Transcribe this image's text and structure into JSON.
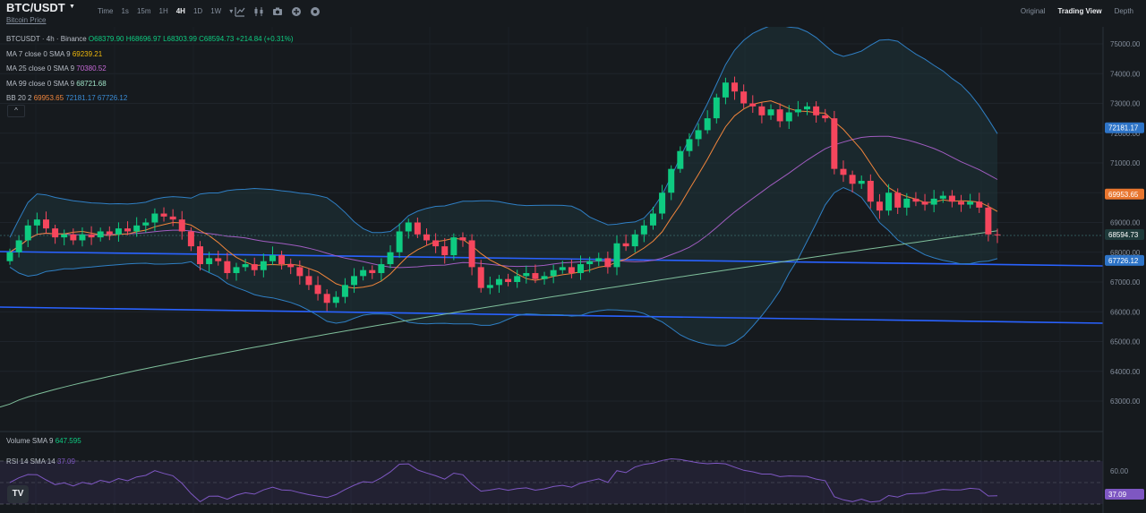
{
  "header": {
    "pair": "BTC/USDT",
    "subtitle": "Bitcoin Price",
    "intervals": [
      {
        "label": "Time",
        "active": false
      },
      {
        "label": "1s",
        "active": false
      },
      {
        "label": "15m",
        "active": false
      },
      {
        "label": "1H",
        "active": false
      },
      {
        "label": "4H",
        "active": true
      },
      {
        "label": "1D",
        "active": false
      },
      {
        "label": "1W",
        "active": false
      },
      {
        "label": "▾",
        "active": false
      }
    ],
    "tools": [
      "indicator-icon",
      "chart-type-icon",
      "camera-icon",
      "add-icon",
      "settings-icon"
    ],
    "views": [
      {
        "label": "Original",
        "active": false
      },
      {
        "label": "Trading View",
        "active": true
      },
      {
        "label": "Depth",
        "active": false
      }
    ]
  },
  "legend": {
    "symbol": "BTCUSDT · 4h · Binance",
    "ohlc": "O68379.90 H68696.97 L68303.99 C68594.73 +214.84 (+0.31%)",
    "ma7": {
      "label": "MA 7 close 0 SMA 9",
      "value": "69239.21",
      "color": "#f0b90b"
    },
    "ma25": {
      "label": "MA 25 close 0 SMA 9",
      "value": "70380.52",
      "color": "#c569d6"
    },
    "ma99": {
      "label": "MA 99 close 0 SMA 9",
      "value": "68721.68",
      "color": "#9fe3c7"
    },
    "bb": {
      "label": "BB 20 2",
      "v1": "69953.65",
      "v2": "72181.17",
      "v3": "67726.12",
      "c1": "#f0853c",
      "c2": "#3a8cd6",
      "c3": "#3a8cd6"
    }
  },
  "volume_label": {
    "label": "Volume SMA 9",
    "value": "647.595"
  },
  "rsi_label": {
    "label": "RSI 14 SMA 14",
    "value": "37.09"
  },
  "rsi_axis": {
    "tick": "60.00",
    "current": "37.09"
  },
  "price_axis": {
    "ticks": [
      "75000.00",
      "74000.00",
      "73000.00",
      "72000.00",
      "71000.00",
      "70000.00",
      "69000.00",
      "68000.00",
      "67000.00",
      "66000.00",
      "65000.00",
      "64000.00",
      "63000.00"
    ],
    "badges": [
      {
        "value": "72181.17",
        "color": "#2e74c7"
      },
      {
        "value": "69953.65",
        "color": "#e8762f"
      },
      {
        "value": "68594.73",
        "color": "#1e3a3a"
      },
      {
        "value": "67726.12",
        "color": "#2e74c7"
      }
    ]
  },
  "colors": {
    "up": "#0ecb81",
    "down": "#f6465d",
    "bg": "#161a1e",
    "grid": "#1f242b"
  },
  "logo": "TV"
}
